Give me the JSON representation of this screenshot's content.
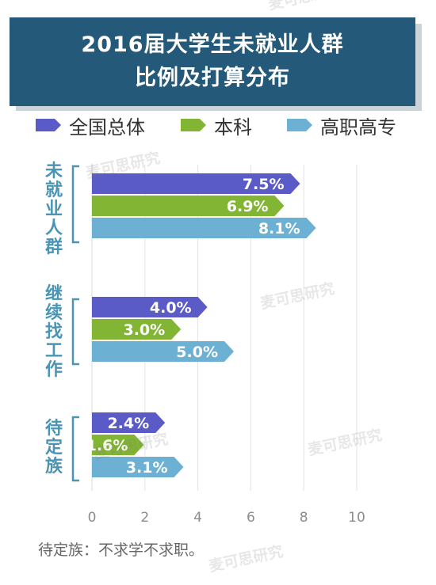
{
  "chart_data": {
    "type": "bar",
    "orientation": "horizontal",
    "title": [
      "2016届大学生未就业人群",
      "比例及打算分布"
    ],
    "categories": [
      "未就业人群",
      "继续找工作",
      "待定族"
    ],
    "series": [
      {
        "name": "全国总体",
        "values": [
          7.5,
          4.0,
          2.4
        ],
        "labels": [
          "7.5%",
          "4.0%",
          "2.4%"
        ],
        "color": "#5b5bc8"
      },
      {
        "name": "本科",
        "values": [
          6.9,
          3.0,
          1.6
        ],
        "labels": [
          "6.9%",
          "3.0%",
          "1.6%"
        ],
        "color": "#82b534"
      },
      {
        "name": "高职高专",
        "values": [
          8.1,
          5.0,
          3.1
        ],
        "labels": [
          "8.1%",
          "5.0%",
          "3.1%"
        ],
        "color": "#6cb1d3"
      }
    ],
    "xlim": [
      0,
      10
    ],
    "xticks": [
      "0",
      "2",
      "4",
      "6",
      "8",
      "10"
    ],
    "grid": true,
    "legend": "top"
  },
  "footnote": "待定族：不求学不求职。",
  "watermark": "麦可思研究"
}
